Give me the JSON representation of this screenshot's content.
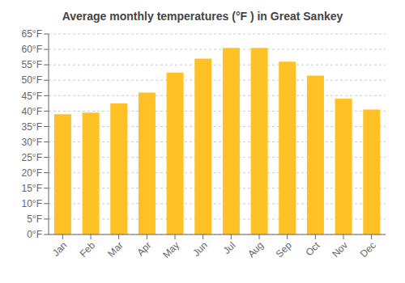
{
  "chart_data": {
    "type": "bar",
    "title": "Average monthly temperatures (°F ) in Great Sankey",
    "categories": [
      "Jan",
      "Feb",
      "Mar",
      "Apr",
      "May",
      "Jun",
      "Jul",
      "Aug",
      "Sep",
      "Oct",
      "Nov",
      "Dec"
    ],
    "values": [
      39,
      39.5,
      42.5,
      46,
      52.5,
      57,
      60.5,
      60.5,
      56,
      51.5,
      44,
      40.5
    ],
    "color": "#FFC125",
    "ylim": [
      0,
      65
    ],
    "yticks": [
      {
        "value": 0,
        "label": "0°F"
      },
      {
        "value": 5,
        "label": "5°F"
      },
      {
        "value": 10,
        "label": "10°F"
      },
      {
        "value": 15,
        "label": "15°F"
      },
      {
        "value": 20,
        "label": "20°F"
      },
      {
        "value": 25,
        "label": "25°F"
      },
      {
        "value": 30,
        "label": "30°F"
      },
      {
        "value": 35,
        "label": "35°F"
      },
      {
        "value": 40,
        "label": "40°F"
      },
      {
        "value": 45,
        "label": "45°F"
      },
      {
        "value": 50,
        "label": "50°F"
      },
      {
        "value": 55,
        "label": "55°F"
      },
      {
        "value": 60,
        "label": "60°F"
      },
      {
        "value": 65,
        "label": "65°F"
      }
    ],
    "grid": true
  }
}
